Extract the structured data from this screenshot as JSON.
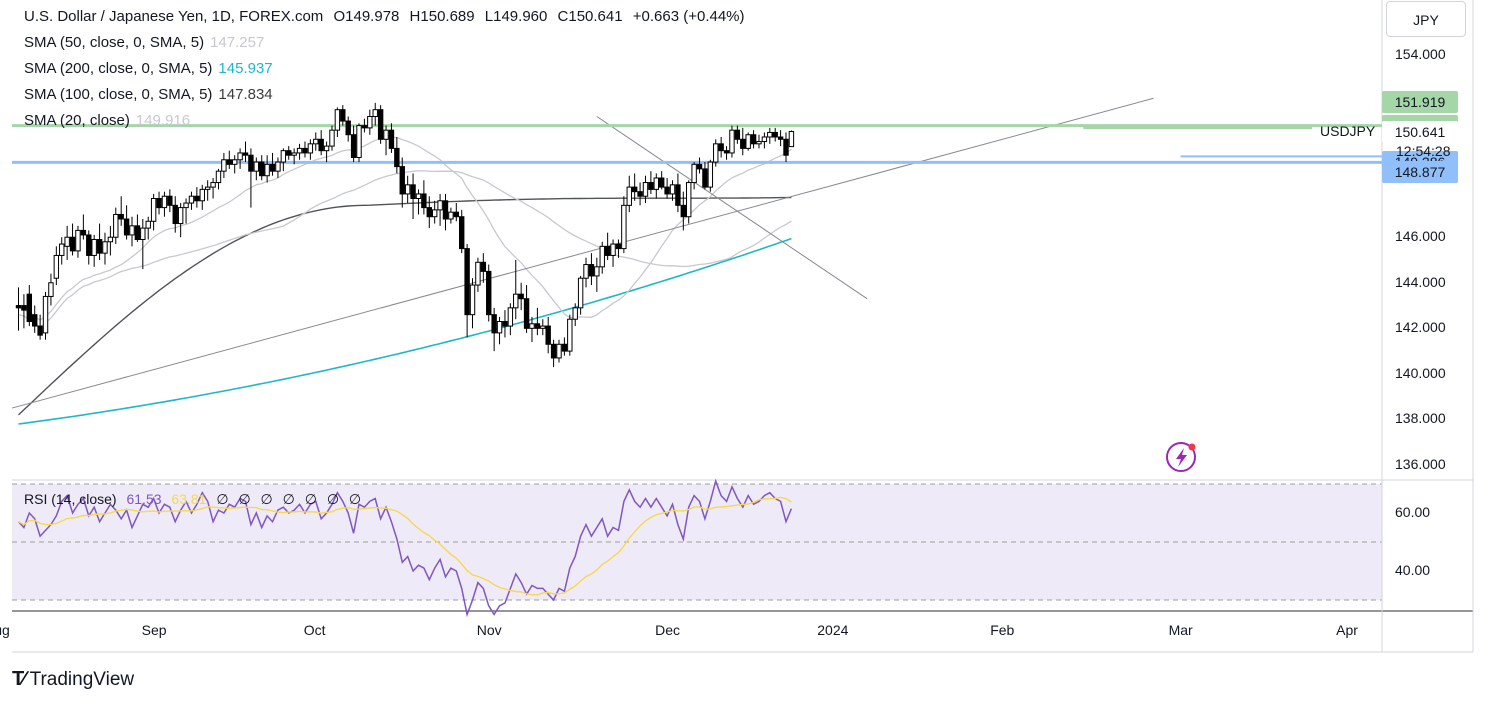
{
  "header": {
    "instrument": "U.S. Dollar / Japanese Yen, 1D, FOREX.com",
    "open": "O149.978",
    "high": "H150.689",
    "low": "L149.960",
    "close": "C150.641",
    "change": "+0.663 (+0.44%)"
  },
  "indicators": [
    {
      "label": "SMA (50, close, 0, SMA, 5)",
      "value": "147.257",
      "color": "#c7c9ce"
    },
    {
      "label": "SMA (200, close, 0, SMA, 5)",
      "value": "145.937",
      "color": "#1fb6c9"
    },
    {
      "label": "SMA (100, close, 0, SMA, 5)",
      "value": "147.834",
      "color": "#3c3c3c"
    },
    {
      "label": "SMA (20, close)",
      "value": "149.916",
      "color": "#c7c9ce"
    }
  ],
  "rsi_legend": {
    "label": "RSI (14, close)",
    "value1": "61.53",
    "value2": "63.81",
    "extra": [
      "∅",
      "∅",
      "∅",
      "∅",
      "∅",
      "∅",
      "∅"
    ]
  },
  "currency": "JPY",
  "symbol_label": "USDJPY",
  "countdown": "12:54:28",
  "price_badges": [
    {
      "text": "151.919",
      "price": 151.919,
      "bg": "#a5d6a7"
    },
    {
      "text": "150.900",
      "price": 150.9,
      "bg": "#a5d6a7"
    },
    {
      "text": "150.641",
      "price": 150.641,
      "bg": "#ffffff"
    },
    {
      "text": "149.286",
      "price": 149.286,
      "bg": "#90bff9"
    },
    {
      "text": "148.877",
      "price": 148.877,
      "bg": "#90bff9"
    }
  ],
  "brand": "TradingView",
  "chart_data": {
    "type": "candlestick",
    "ylim": [
      135,
      156
    ],
    "price_ticks": [
      "154.000",
      "146.000",
      "144.000",
      "142.000",
      "140.000",
      "138.000",
      "136.000"
    ],
    "price_tick_values": [
      154,
      146,
      144,
      142,
      140,
      138,
      136
    ],
    "rsi_ylim": [
      26,
      74
    ],
    "rsi_ticks": [
      "60.00",
      "40.00"
    ],
    "rsi_tick_values": [
      60,
      40
    ],
    "rsi_band": [
      30,
      70,
      50
    ],
    "x_labels": [
      "Aug",
      "Sep",
      "Oct",
      "Nov",
      "Dec",
      "2024",
      "Feb",
      "Mar",
      "Apr"
    ],
    "x_label_index": [
      -4,
      25,
      55,
      87,
      120,
      150,
      182,
      215,
      246
    ],
    "candles": [
      [
        143.0,
        143.8,
        141.9,
        142.9
      ],
      [
        143.0,
        143.5,
        142.0,
        142.8
      ],
      [
        143.5,
        143.9,
        142.1,
        142.3
      ],
      [
        142.6,
        143.0,
        141.8,
        142.1
      ],
      [
        142.1,
        142.6,
        141.5,
        141.7
      ],
      [
        141.8,
        143.6,
        141.5,
        143.4
      ],
      [
        143.4,
        144.4,
        143.0,
        144.0
      ],
      [
        144.2,
        145.6,
        143.9,
        145.2
      ],
      [
        145.2,
        146.0,
        144.8,
        145.7
      ],
      [
        145.6,
        146.5,
        145.0,
        146.0
      ],
      [
        146.0,
        146.6,
        145.2,
        145.4
      ],
      [
        145.4,
        146.5,
        145.1,
        146.3
      ],
      [
        146.3,
        147.0,
        145.9,
        146.1
      ],
      [
        146.1,
        146.3,
        144.8,
        145.2
      ],
      [
        145.2,
        146.1,
        144.7,
        145.9
      ],
      [
        145.9,
        146.6,
        145.0,
        145.3
      ],
      [
        145.3,
        146.2,
        144.8,
        145.8
      ],
      [
        145.8,
        146.5,
        145.2,
        146.0
      ],
      [
        146.0,
        147.3,
        145.7,
        147.0
      ],
      [
        147.0,
        147.8,
        146.5,
        146.8
      ],
      [
        146.8,
        147.4,
        145.9,
        146.1
      ],
      [
        146.1,
        146.9,
        145.6,
        146.5
      ],
      [
        146.5,
        147.0,
        145.8,
        145.9
      ],
      [
        145.9,
        146.8,
        144.6,
        146.4
      ],
      [
        146.4,
        146.9,
        145.9,
        146.7
      ],
      [
        146.7,
        147.9,
        146.3,
        147.7
      ],
      [
        147.7,
        148.0,
        147.0,
        147.3
      ],
      [
        147.3,
        148.0,
        146.9,
        147.8
      ],
      [
        147.8,
        148.1,
        147.1,
        147.4
      ],
      [
        147.4,
        147.8,
        146.2,
        146.6
      ],
      [
        146.6,
        147.5,
        146.0,
        147.3
      ],
      [
        147.3,
        147.7,
        146.6,
        147.5
      ],
      [
        147.5,
        148.0,
        147.2,
        147.8
      ],
      [
        147.8,
        148.2,
        147.3,
        147.6
      ],
      [
        147.6,
        148.3,
        147.2,
        148.1
      ],
      [
        148.1,
        148.5,
        147.6,
        148.2
      ],
      [
        148.2,
        148.6,
        147.7,
        148.4
      ],
      [
        148.4,
        149.0,
        148.1,
        148.9
      ],
      [
        148.9,
        149.7,
        148.6,
        149.4
      ],
      [
        149.4,
        149.8,
        149.0,
        149.2
      ],
      [
        149.2,
        149.6,
        148.8,
        149.4
      ],
      [
        149.4,
        149.9,
        149.0,
        149.7
      ],
      [
        149.7,
        150.2,
        149.3,
        149.6
      ],
      [
        149.6,
        149.9,
        147.3,
        148.9
      ],
      [
        148.9,
        149.5,
        148.5,
        149.3
      ],
      [
        149.3,
        149.6,
        148.5,
        148.7
      ],
      [
        148.7,
        149.6,
        148.4,
        149.2
      ],
      [
        149.2,
        149.7,
        148.7,
        148.9
      ],
      [
        148.9,
        149.5,
        148.6,
        149.3
      ],
      [
        149.3,
        149.9,
        148.9,
        149.8
      ],
      [
        149.8,
        150.0,
        149.4,
        149.6
      ],
      [
        149.6,
        149.9,
        149.2,
        149.7
      ],
      [
        149.7,
        150.1,
        149.4,
        149.9
      ],
      [
        149.9,
        150.2,
        149.5,
        149.7
      ],
      [
        149.7,
        150.3,
        149.4,
        150.1
      ],
      [
        150.1,
        150.6,
        149.8,
        150.3
      ],
      [
        150.3,
        150.7,
        149.6,
        149.8
      ],
      [
        149.8,
        150.2,
        149.3,
        150.0
      ],
      [
        150.0,
        150.9,
        149.8,
        150.7
      ],
      [
        150.7,
        151.7,
        150.4,
        151.6
      ],
      [
        151.6,
        151.8,
        150.9,
        151.1
      ],
      [
        151.1,
        151.3,
        150.2,
        150.5
      ],
      [
        150.5,
        150.9,
        149.3,
        149.5
      ],
      [
        149.5,
        151.0,
        149.3,
        150.9
      ],
      [
        150.9,
        151.2,
        150.6,
        150.8
      ],
      [
        150.8,
        151.6,
        150.5,
        151.3
      ],
      [
        151.3,
        151.9,
        150.9,
        151.6
      ],
      [
        151.6,
        151.8,
        150.1,
        150.3
      ],
      [
        150.3,
        150.9,
        149.6,
        150.7
      ],
      [
        150.7,
        151.0,
        149.7,
        149.9
      ],
      [
        149.9,
        150.4,
        148.8,
        149.1
      ],
      [
        149.1,
        149.5,
        147.3,
        147.9
      ],
      [
        147.9,
        148.7,
        147.5,
        148.3
      ],
      [
        148.3,
        148.8,
        146.8,
        147.7
      ],
      [
        147.7,
        148.1,
        147.0,
        147.9
      ],
      [
        147.9,
        148.5,
        147.0,
        147.3
      ],
      [
        147.3,
        147.8,
        146.4,
        146.9
      ],
      [
        146.9,
        147.6,
        146.6,
        147.2
      ],
      [
        147.2,
        147.9,
        146.5,
        147.6
      ],
      [
        147.6,
        147.9,
        146.3,
        146.8
      ],
      [
        146.8,
        147.3,
        146.6,
        147.1
      ],
      [
        147.1,
        147.5,
        146.7,
        146.9
      ],
      [
        146.9,
        147.2,
        145.3,
        145.5
      ],
      [
        145.5,
        145.7,
        141.6,
        142.6
      ],
      [
        142.6,
        144.2,
        142.0,
        143.9
      ],
      [
        143.9,
        145.1,
        143.6,
        144.9
      ],
      [
        144.9,
        145.3,
        144.0,
        144.5
      ],
      [
        144.5,
        144.8,
        142.3,
        142.6
      ],
      [
        142.6,
        142.9,
        141.0,
        141.8
      ],
      [
        141.8,
        142.5,
        141.3,
        142.3
      ],
      [
        142.3,
        142.8,
        141.6,
        142.1
      ],
      [
        142.1,
        143.1,
        141.7,
        142.9
      ],
      [
        142.9,
        145.0,
        142.4,
        143.5
      ],
      [
        143.5,
        144.0,
        142.8,
        143.3
      ],
      [
        143.3,
        143.9,
        141.8,
        142.0
      ],
      [
        142.0,
        142.5,
        141.4,
        142.2
      ],
      [
        142.2,
        142.9,
        141.7,
        142.0
      ],
      [
        142.0,
        142.4,
        141.7,
        142.1
      ],
      [
        142.1,
        142.5,
        140.9,
        141.3
      ],
      [
        141.3,
        141.5,
        140.3,
        140.7
      ],
      [
        140.7,
        141.5,
        140.5,
        141.3
      ],
      [
        141.3,
        141.6,
        140.8,
        141.0
      ],
      [
        141.0,
        142.6,
        140.8,
        142.4
      ],
      [
        142.4,
        143.1,
        142.1,
        142.9
      ],
      [
        142.9,
        144.3,
        142.6,
        144.2
      ],
      [
        144.2,
        145.1,
        143.8,
        144.8
      ],
      [
        144.8,
        145.3,
        143.9,
        144.3
      ],
      [
        144.3,
        145.1,
        143.6,
        144.7
      ],
      [
        144.7,
        145.8,
        144.4,
        145.6
      ],
      [
        145.6,
        146.2,
        145.0,
        145.2
      ],
      [
        145.2,
        145.9,
        144.7,
        145.7
      ],
      [
        145.7,
        145.9,
        145.1,
        145.5
      ],
      [
        145.5,
        147.8,
        145.3,
        147.4
      ],
      [
        147.4,
        148.7,
        147.1,
        148.2
      ],
      [
        148.2,
        148.8,
        147.6,
        148.0
      ],
      [
        148.0,
        148.4,
        147.4,
        147.8
      ],
      [
        147.8,
        148.7,
        147.5,
        148.4
      ],
      [
        148.4,
        148.9,
        147.9,
        148.1
      ],
      [
        148.1,
        148.8,
        147.7,
        148.6
      ],
      [
        148.6,
        148.9,
        148.1,
        148.2
      ],
      [
        148.2,
        148.6,
        147.7,
        147.9
      ],
      [
        147.9,
        148.5,
        147.6,
        148.3
      ],
      [
        148.3,
        148.8,
        147.1,
        147.4
      ],
      [
        147.4,
        148.0,
        146.3,
        146.9
      ],
      [
        146.9,
        148.5,
        146.6,
        148.4
      ],
      [
        148.4,
        149.3,
        148.1,
        149.2
      ],
      [
        149.2,
        149.5,
        148.8,
        149.0
      ],
      [
        149.0,
        149.3,
        148.1,
        148.2
      ],
      [
        148.2,
        149.4,
        148.0,
        149.3
      ],
      [
        149.3,
        150.3,
        149.1,
        150.1
      ],
      [
        150.1,
        150.4,
        149.5,
        149.8
      ],
      [
        149.8,
        150.0,
        149.4,
        149.7
      ],
      [
        149.7,
        150.9,
        149.5,
        150.7
      ],
      [
        150.7,
        150.9,
        150.1,
        150.3
      ],
      [
        150.3,
        150.8,
        149.6,
        149.9
      ],
      [
        149.9,
        150.6,
        149.8,
        150.5
      ],
      [
        150.5,
        150.7,
        149.9,
        150.1
      ],
      [
        150.1,
        150.5,
        149.9,
        150.2
      ],
      [
        150.2,
        150.6,
        149.9,
        150.4
      ],
      [
        150.4,
        150.8,
        150.1,
        150.6
      ],
      [
        150.6,
        150.8,
        150.2,
        150.4
      ],
      [
        150.4,
        150.7,
        150.0,
        150.3
      ],
      [
        150.3,
        150.6,
        149.3,
        149.6
      ],
      [
        149.978,
        150.689,
        149.96,
        150.641
      ]
    ],
    "rsi": [
      57,
      55,
      60,
      58,
      52,
      54,
      56,
      59,
      64,
      66,
      60,
      63,
      65,
      59,
      62,
      57,
      60,
      63,
      61,
      58,
      61,
      55,
      59,
      63,
      62,
      65,
      60,
      63,
      62,
      57,
      61,
      64,
      60,
      63,
      67,
      64,
      57,
      61,
      60,
      63,
      62,
      65,
      64,
      56,
      60,
      55,
      59,
      57,
      61,
      62,
      60,
      61,
      63,
      60,
      63,
      64,
      58,
      60,
      63,
      67,
      64,
      60,
      53,
      63,
      62,
      64,
      65,
      58,
      62,
      57,
      51,
      43,
      45,
      40,
      42,
      41,
      37,
      41,
      44,
      38,
      41,
      40,
      34,
      25,
      30,
      36,
      34,
      28,
      25,
      28,
      29,
      34,
      39,
      36,
      32,
      35,
      34,
      34,
      32,
      30,
      34,
      33,
      41,
      45,
      52,
      56,
      52,
      55,
      58,
      52,
      55,
      54,
      64,
      68,
      64,
      62,
      65,
      62,
      65,
      62,
      59,
      63,
      56,
      51,
      62,
      66,
      64,
      58,
      64,
      71,
      66,
      64,
      69,
      65,
      62,
      66,
      63,
      64,
      66,
      67,
      65,
      64,
      57,
      61.53
    ],
    "rsi_ma_value": 63.81,
    "sma_labels": [
      "SMA (50, close, 0, SMA, 5)",
      "SMA (200, close, 0, SMA, 5)",
      "SMA (100, close, 0, SMA, 5)",
      "SMA (20, close)"
    ],
    "horizontal_levels": [
      {
        "price": 150.9,
        "color": "#a5d6a7",
        "label": "150.900"
      },
      {
        "price": 149.286,
        "color": "#90bff9",
        "label": "149.286"
      }
    ]
  }
}
